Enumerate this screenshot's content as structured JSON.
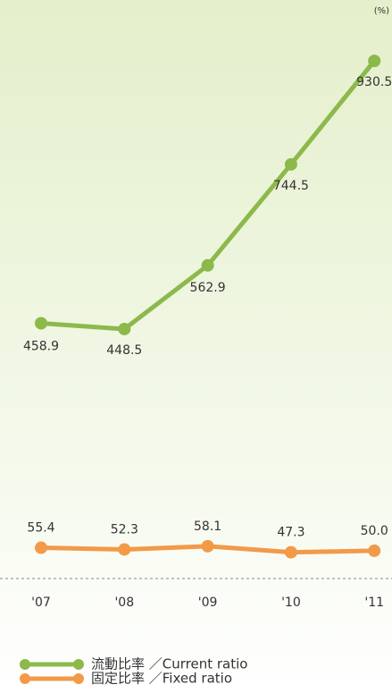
{
  "chart_data": {
    "type": "line",
    "unit_label": "(%)",
    "categories": [
      "'07",
      "'08",
      "'09",
      "'10",
      "'11"
    ],
    "series": [
      {
        "name": "流動比率 ／Current ratio",
        "color": "#8cb94a",
        "values": [
          458.9,
          448.5,
          562.9,
          744.5,
          930.5
        ]
      },
      {
        "name": "固定比率 ／Fixed ratio",
        "color": "#f29a48",
        "values": [
          55.4,
          52.3,
          58.1,
          47.3,
          50.0
        ],
        "value_labels": [
          "55.4",
          "52.3",
          "58.1",
          "47.3",
          "50.0"
        ]
      }
    ],
    "ylim": [
      0,
      1040
    ]
  }
}
